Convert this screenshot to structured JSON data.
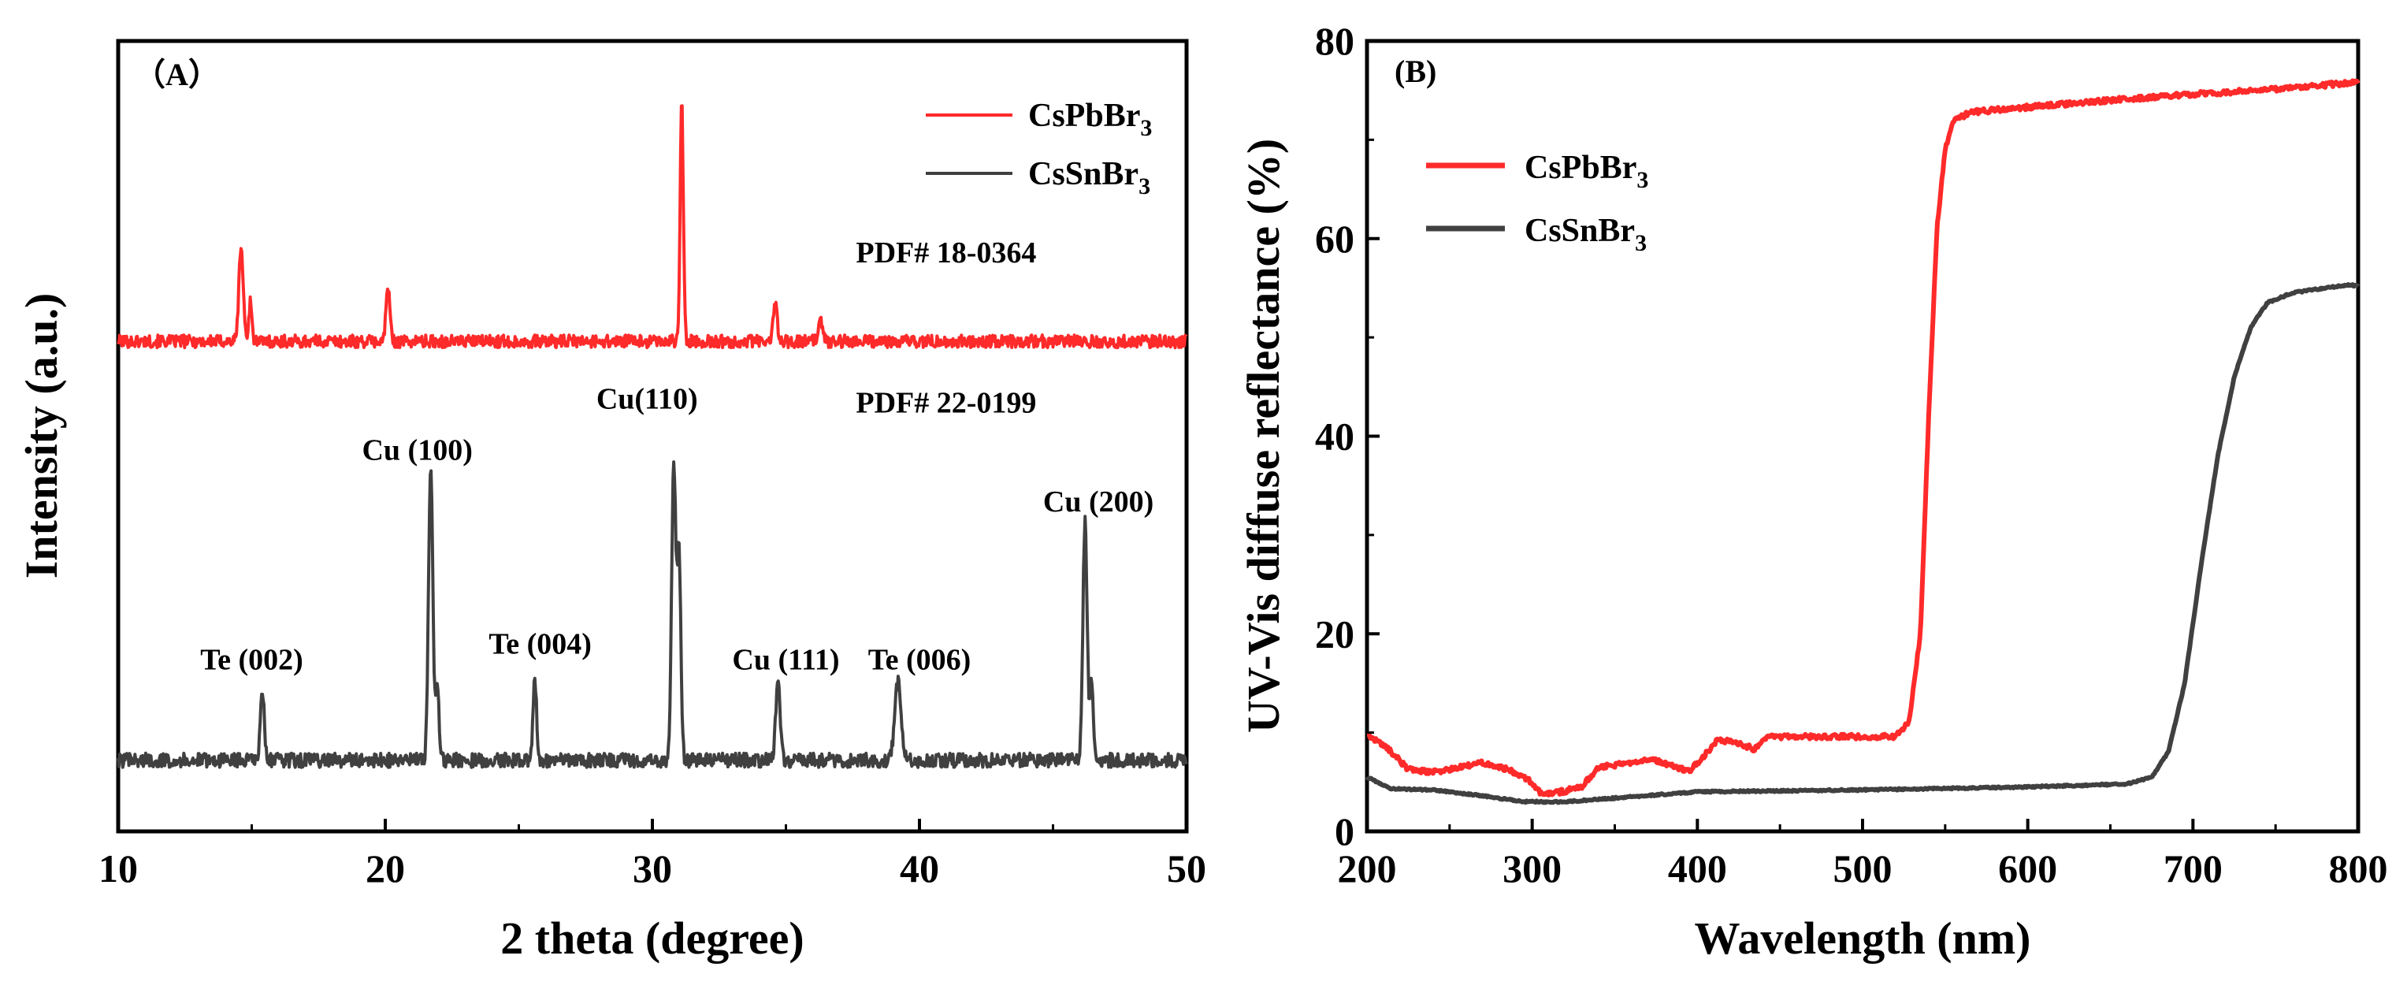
{
  "chart_data": [
    {
      "panel_label": "（A）",
      "type": "line",
      "xlabel": "2 theta (degree)",
      "ylabel": "Intensity (a.u.)",
      "xlim": [
        10,
        50
      ],
      "xticks": [
        10,
        20,
        30,
        40,
        50
      ],
      "yticks": [],
      "grid": false,
      "legend_position": "top-right",
      "series": [
        {
          "name": "CsPbBr3",
          "legend": {
            "main": "CsPbBr",
            "sub": "3"
          },
          "color": "#ff2a2a",
          "baseline": 0.62,
          "noise": 0.008,
          "peaks": [
            {
              "x": 14.6,
              "h": 0.12,
              "w": 0.08
            },
            {
              "x": 14.95,
              "h": 0.05,
              "w": 0.06
            },
            {
              "x": 20.1,
              "h": 0.07,
              "w": 0.07
            },
            {
              "x": 31.1,
              "h": 0.3,
              "w": 0.06
            },
            {
              "x": 34.6,
              "h": 0.05,
              "w": 0.07
            },
            {
              "x": 36.3,
              "h": 0.03,
              "w": 0.07
            }
          ]
        },
        {
          "name": "CsSnBr3",
          "legend": {
            "main": "CsSnBr",
            "sub": "3"
          },
          "color": "#404040",
          "baseline": 0.09,
          "noise": 0.009,
          "peaks": [
            {
              "x": 15.4,
              "h": 0.09,
              "w": 0.07
            },
            {
              "x": 21.7,
              "h": 0.37,
              "w": 0.08
            },
            {
              "x": 21.95,
              "h": 0.1,
              "w": 0.06
            },
            {
              "x": 25.6,
              "h": 0.1,
              "w": 0.07
            },
            {
              "x": 30.8,
              "h": 0.37,
              "w": 0.08
            },
            {
              "x": 31.0,
              "h": 0.25,
              "w": 0.07
            },
            {
              "x": 34.7,
              "h": 0.1,
              "w": 0.08
            },
            {
              "x": 39.2,
              "h": 0.1,
              "w": 0.12
            },
            {
              "x": 46.2,
              "h": 0.3,
              "w": 0.08
            },
            {
              "x": 46.45,
              "h": 0.1,
              "w": 0.06
            }
          ]
        }
      ],
      "annotations": [
        {
          "text": "PDF# 18-0364",
          "x": 41.0,
          "y": 0.72
        },
        {
          "text": "PDF# 22-0199",
          "x": 41.0,
          "y": 0.53
        },
        {
          "text": "Te (002)",
          "x": 15.0,
          "y": 0.205
        },
        {
          "text": "Cu (100)",
          "x": 21.2,
          "y": 0.47
        },
        {
          "text": "Te (004)",
          "x": 25.8,
          "y": 0.225
        },
        {
          "text": "Cu(110)",
          "x": 29.8,
          "y": 0.535
        },
        {
          "text": "Cu (111)",
          "x": 35.0,
          "y": 0.205
        },
        {
          "text": "Te (006)",
          "x": 40.0,
          "y": 0.205
        },
        {
          "text": "Cu (200)",
          "x": 46.7,
          "y": 0.405
        }
      ]
    },
    {
      "panel_label": "(B)",
      "type": "line",
      "xlabel": "Wavelength (nm)",
      "ylabel": "UV-Vis diffuse reflectance (%)",
      "xlim": [
        200,
        800
      ],
      "ylim": [
        0,
        80
      ],
      "xticks": [
        200,
        300,
        400,
        500,
        600,
        700,
        800
      ],
      "yticks": [
        0,
        20,
        40,
        60,
        80
      ],
      "grid": false,
      "legend_position": "top-left",
      "series": [
        {
          "name": "CsPbBr3",
          "legend": {
            "main": "CsPbBr",
            "sub": "3"
          },
          "color": "#ff2a2a",
          "noise": 0.25,
          "points": [
            [
              200,
              9.8
            ],
            [
              212,
              8.5
            ],
            [
              225,
              6.3
            ],
            [
              240,
              6.0
            ],
            [
              255,
              6.4
            ],
            [
              270,
              7.0
            ],
            [
              285,
              6.3
            ],
            [
              300,
              5.0
            ],
            [
              305,
              3.8
            ],
            [
              315,
              3.9
            ],
            [
              330,
              4.5
            ],
            [
              340,
              6.5
            ],
            [
              355,
              6.8
            ],
            [
              370,
              7.4
            ],
            [
              385,
              6.6
            ],
            [
              395,
              6.1
            ],
            [
              405,
              7.8
            ],
            [
              412,
              9.3
            ],
            [
              425,
              8.9
            ],
            [
              435,
              8.3
            ],
            [
              440,
              9.5
            ],
            [
              460,
              9.6
            ],
            [
              500,
              9.6
            ],
            [
              520,
              9.6
            ],
            [
              528,
              11.0
            ],
            [
              535,
              20.0
            ],
            [
              540,
              42.0
            ],
            [
              545,
              61.0
            ],
            [
              550,
              69.0
            ],
            [
              555,
              71.8
            ],
            [
              565,
              72.8
            ],
            [
              600,
              73.3
            ],
            [
              650,
              74.0
            ],
            [
              700,
              74.6
            ],
            [
              750,
              75.1
            ],
            [
              790,
              75.7
            ],
            [
              800,
              75.9
            ]
          ]
        },
        {
          "name": "CsSnBr3",
          "legend": {
            "main": "CsSnBr",
            "sub": "3"
          },
          "color": "#404040",
          "noise": 0.08,
          "points": [
            [
              200,
              5.5
            ],
            [
              215,
              4.3
            ],
            [
              240,
              4.2
            ],
            [
              270,
              3.6
            ],
            [
              295,
              3.0
            ],
            [
              320,
              3.0
            ],
            [
              360,
              3.5
            ],
            [
              400,
              4.0
            ],
            [
              500,
              4.2
            ],
            [
              600,
              4.5
            ],
            [
              660,
              4.8
            ],
            [
              675,
              5.5
            ],
            [
              685,
              8.0
            ],
            [
              695,
              15.0
            ],
            [
              705,
              27.0
            ],
            [
              715,
              38.0
            ],
            [
              725,
              46.0
            ],
            [
              735,
              51.0
            ],
            [
              745,
              53.5
            ],
            [
              760,
              54.5
            ],
            [
              780,
              55.0
            ],
            [
              795,
              55.3
            ],
            [
              800,
              55.2
            ]
          ]
        }
      ]
    }
  ]
}
